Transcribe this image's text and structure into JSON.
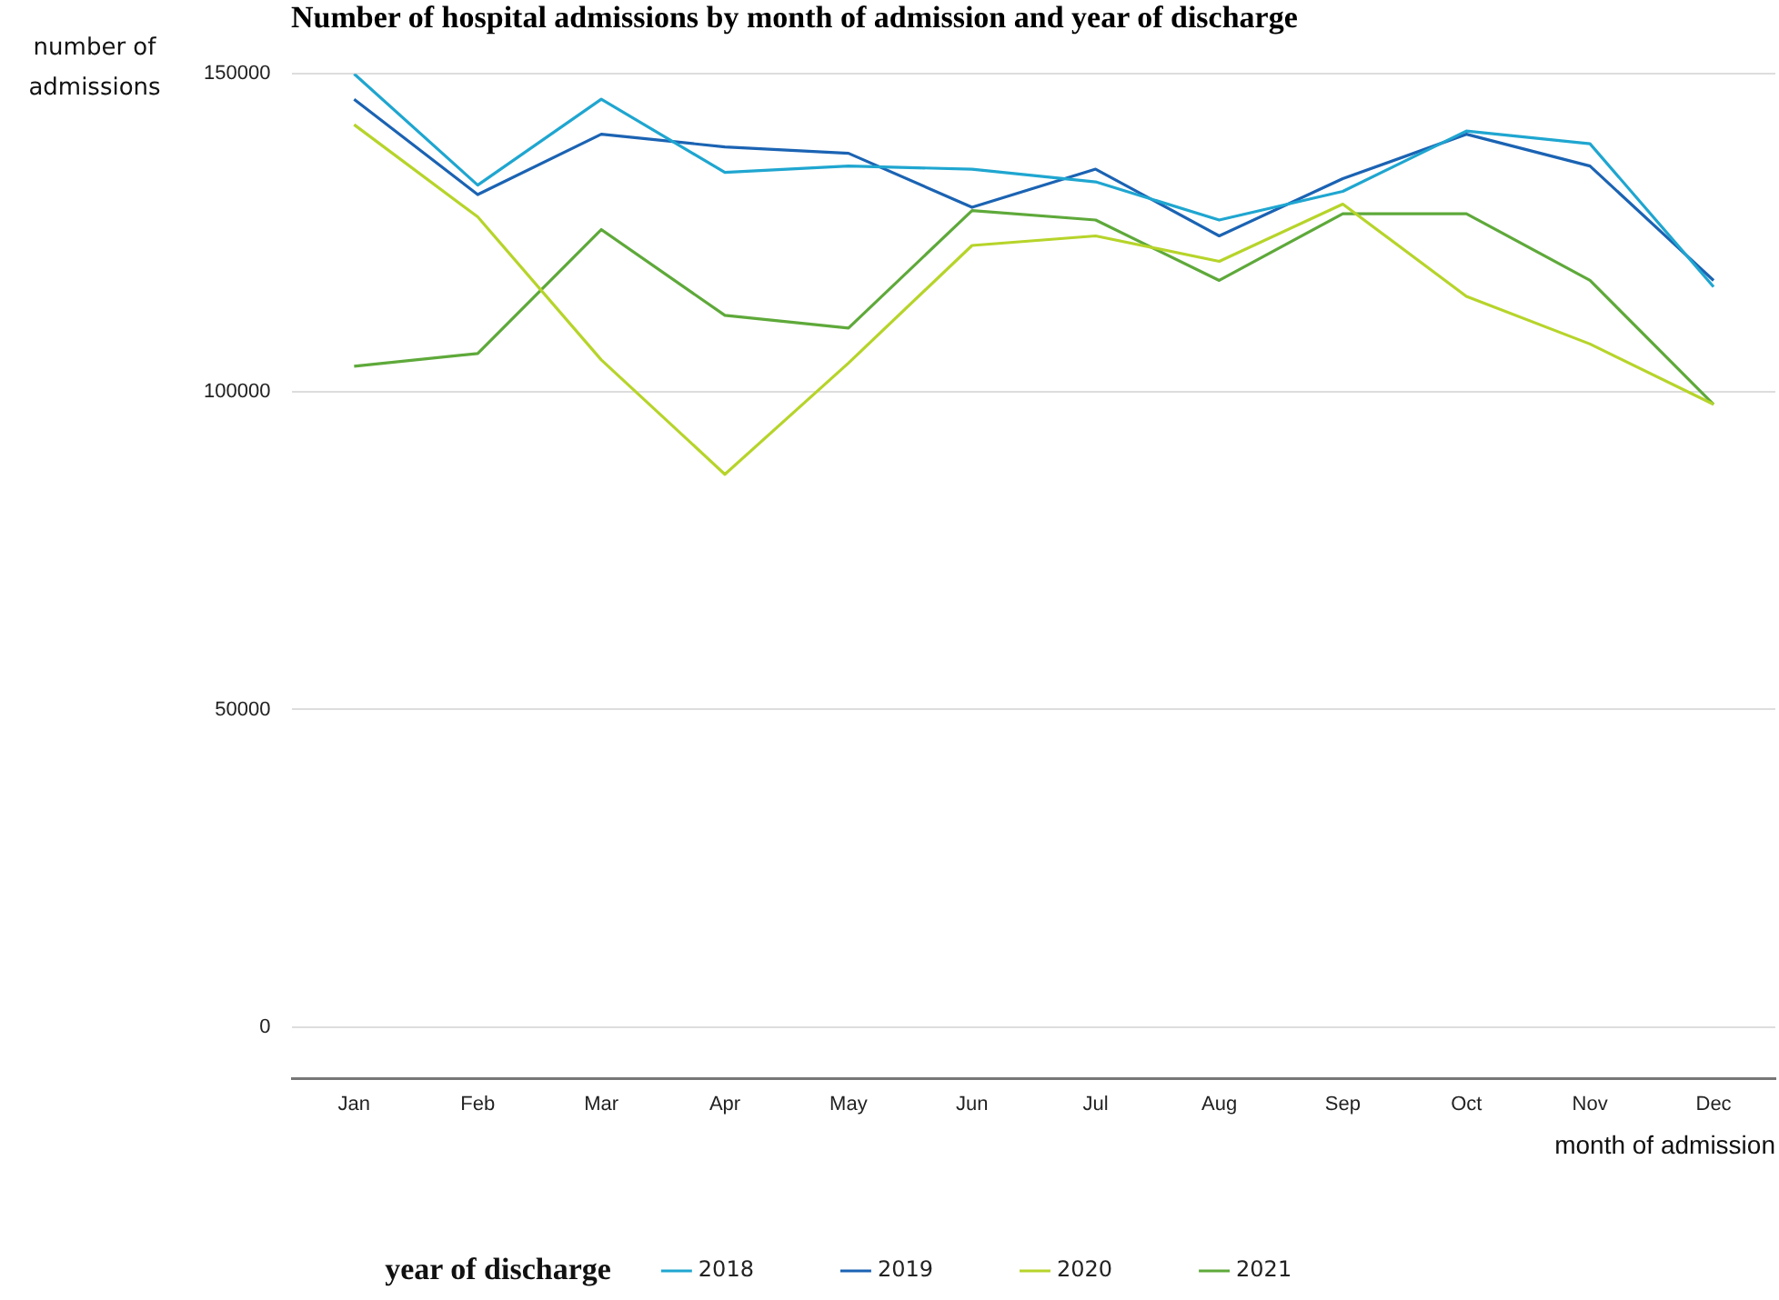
{
  "chart_data": {
    "type": "line",
    "title": "Number of hospital admissions by month of admission and year of discharge",
    "xlabel": "month of admission",
    "ylabel": "number of admissions",
    "legend_title": "year of discharge",
    "legend": "bottom",
    "grid": "y",
    "marker": "none",
    "line_style": "solid",
    "categories": [
      "Jan",
      "Feb",
      "Mar",
      "Apr",
      "May",
      "Jun",
      "Jul",
      "Aug",
      "Sep",
      "Oct",
      "Nov",
      "Dec"
    ],
    "ylim": [
      -8000,
      150000
    ],
    "yticks": [
      0,
      50000,
      100000,
      150000
    ],
    "series": [
      {
        "name": "2018",
        "color": "#1fa6d0",
        "values": [
          150000,
          132500,
          146000,
          134500,
          135500,
          135000,
          133000,
          127000,
          131500,
          141000,
          139000,
          116500
        ]
      },
      {
        "name": "2019",
        "color": "#1b63b3",
        "values": [
          146000,
          131000,
          140500,
          138500,
          137500,
          129000,
          135000,
          124500,
          133500,
          140500,
          135500,
          117500
        ]
      },
      {
        "name": "2020",
        "color": "#b6d42a",
        "values": [
          142000,
          127500,
          105000,
          87000,
          104500,
          123000,
          124500,
          120500,
          129500,
          115000,
          107500,
          98000
        ]
      },
      {
        "name": "2021",
        "color": "#5ea93a",
        "values": [
          104000,
          106000,
          125500,
          112000,
          110000,
          128500,
          127000,
          117500,
          128000,
          128000,
          117500,
          98000
        ]
      }
    ]
  }
}
